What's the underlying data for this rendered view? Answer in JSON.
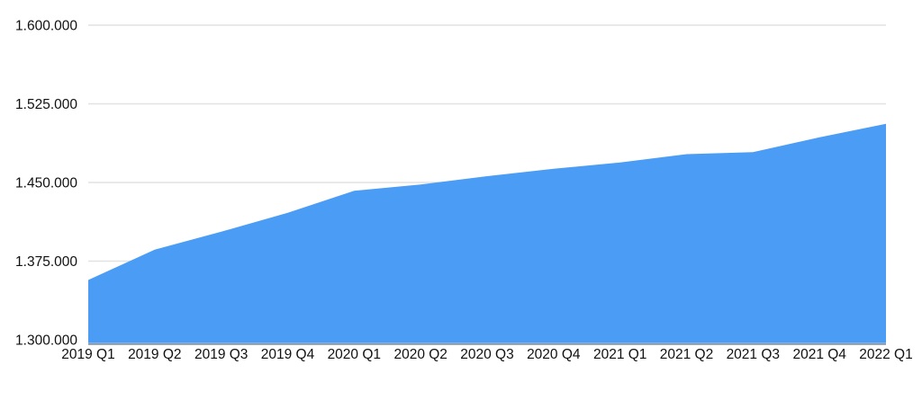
{
  "chart_data": {
    "type": "area",
    "title": "",
    "xlabel": "",
    "ylabel": "",
    "categories": [
      "2019 Q1",
      "2019 Q2",
      "2019 Q3",
      "2019 Q4",
      "2020 Q1",
      "2020 Q2",
      "2020 Q3",
      "2020 Q4",
      "2021 Q1",
      "2021 Q2",
      "2021 Q3",
      "2021 Q4",
      "2022 Q1"
    ],
    "values": [
      1357000,
      1386000,
      1403000,
      1421000,
      1442000,
      1448000,
      1456000,
      1463000,
      1469000,
      1477000,
      1479000,
      1493000,
      1506000
    ],
    "ylim": [
      1300000,
      1600000
    ],
    "y_ticks": [
      1600000,
      1525000,
      1450000,
      1375000,
      1300000
    ],
    "y_tick_labels": [
      "1.600.000",
      "1.525.000",
      "1.450.000",
      "1.375.000",
      "1.300.000"
    ],
    "grid": true,
    "legend": "none",
    "colors": {
      "area_fill": "#4A9CF5",
      "gridline": "#e2e2e2",
      "axis_line": "#8496a8",
      "tick_text": "#111111",
      "background": "#ffffff"
    }
  }
}
